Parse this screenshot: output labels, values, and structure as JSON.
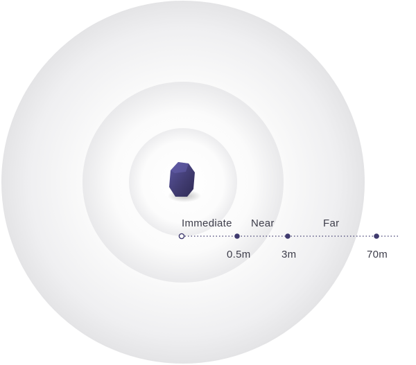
{
  "zones": {
    "immediate_label": "Immediate",
    "near_label": "Near",
    "far_label": "Far"
  },
  "distances": {
    "d1": "0.5m",
    "d2": "3m",
    "d3": "70m"
  },
  "colors": {
    "beacon": "#3f3a6e",
    "beacon_highlight": "#5a55a0",
    "line": "#3f3a6e",
    "zone_outer": "#e6e6e8",
    "zone_inner": "#fafafa"
  },
  "icons": {
    "beacon": "beacon-stone-icon",
    "origin": "origin-ring-marker"
  }
}
